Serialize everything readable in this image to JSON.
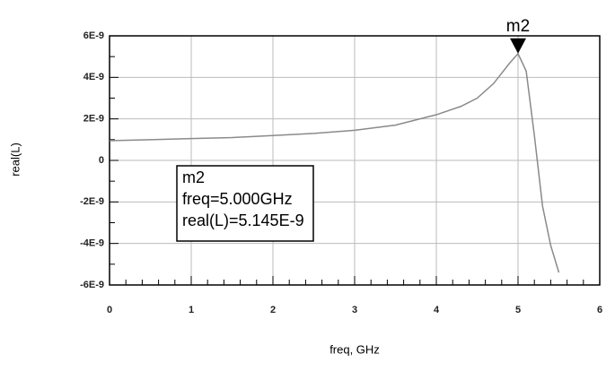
{
  "chart_data": {
    "type": "line",
    "xlabel": "freq, GHz",
    "ylabel": "real(L)",
    "x": [
      0,
      0.5,
      1,
      1.5,
      2,
      2.5,
      3,
      3.5,
      4,
      4.3,
      4.5,
      4.7,
      4.8,
      4.9,
      5,
      5.1,
      5.2,
      5.3,
      5.4,
      5.5
    ],
    "series": [
      {
        "name": "real(L)",
        "color": "#8a8a8a",
        "values": [
          9.5e-10,
          1e-09,
          1.05e-09,
          1.1e-09,
          1.2e-09,
          1.3e-09,
          1.45e-09,
          1.7e-09,
          2.2e-09,
          2.6e-09,
          3e-09,
          3.7e-09,
          4.2e-09,
          4.7e-09,
          5.145e-09,
          4.3e-09,
          1.2e-09,
          -2.2e-09,
          -4.1e-09,
          -5.4e-09
        ]
      }
    ],
    "xlim": [
      0,
      6
    ],
    "xticks": [
      0,
      1,
      2,
      3,
      4,
      5,
      6
    ],
    "ylim": [
      -6e-09,
      6e-09
    ],
    "yticks": [
      {
        "value": 6e-09,
        "label": "6E-9"
      },
      {
        "value": 4e-09,
        "label": "4E-9"
      },
      {
        "value": 2e-09,
        "label": "2E-9"
      },
      0,
      {
        "value": -2e-09,
        "label": "-2E-9"
      },
      {
        "value": -4e-09,
        "label": "-4E-9"
      },
      {
        "value": -6e-09,
        "label": "-6E-9"
      }
    ],
    "grid": true,
    "marker": {
      "name": "m2",
      "x": 5,
      "y": 5.145e-09,
      "lines": [
        "m2",
        "freq=5.000GHz",
        "real(L)=5.145E-9"
      ]
    }
  }
}
